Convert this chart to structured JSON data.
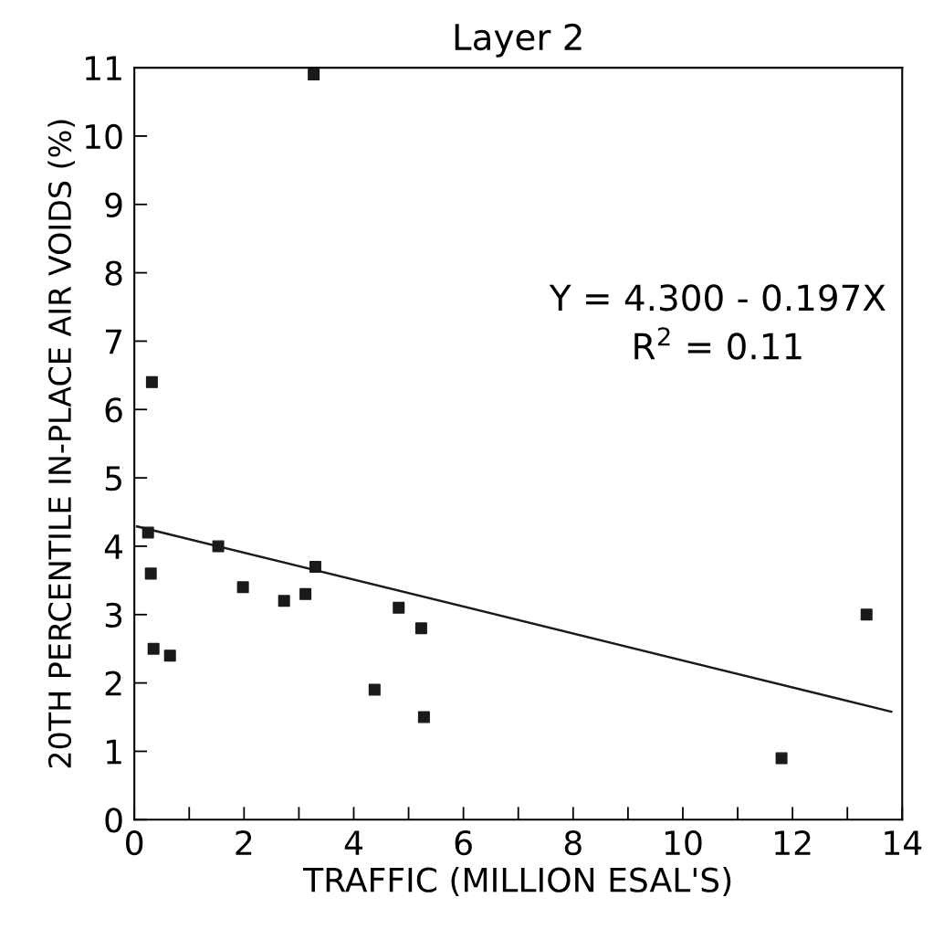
{
  "chart_data": {
    "type": "scatter",
    "title": "Layer 2",
    "xlabel": "TRAFFIC (MILLION ESAL'S)",
    "ylabel": "20TH PERCENTILE IN-PLACE AIR VOIDS (%)",
    "xlim": [
      0,
      14
    ],
    "ylim": [
      0,
      11
    ],
    "xticks": [
      0,
      {
        "value": 1,
        "label": null
      },
      2,
      {
        "value": 3,
        "label": null
      },
      4,
      {
        "value": 5,
        "label": null
      },
      6,
      {
        "value": 7,
        "label": null
      },
      8,
      {
        "value": 9,
        "label": null
      },
      10,
      {
        "value": 11,
        "label": null
      },
      12,
      {
        "value": 13,
        "label": null
      },
      14
    ],
    "yticks": [
      0,
      1,
      2,
      3,
      4,
      5,
      6,
      7,
      8,
      9,
      10,
      11
    ],
    "grid": false,
    "legend": false,
    "series": [
      {
        "marker": "square",
        "color": "#1a1a1a",
        "x": [
          0.32,
          0.25,
          0.3,
          0.35,
          0.65,
          1.53,
          1.98,
          2.73,
          3.27,
          3.12,
          3.3,
          4.38,
          4.82,
          5.23,
          5.28,
          11.8,
          13.35
        ],
        "values": [
          6.4,
          4.2,
          3.6,
          2.5,
          2.4,
          4.0,
          3.4,
          3.2,
          10.9,
          3.3,
          3.7,
          1.9,
          3.1,
          2.8,
          1.5,
          0.9,
          3.0
        ]
      },
      {
        "type": "line",
        "marker": "none",
        "color": "#1a1a1a",
        "x": [
          0.05,
          13.8
        ],
        "values": [
          4.29,
          1.58
        ]
      }
    ],
    "annotations": [
      "Y = 4.300 - 0.197X",
      "R$^{2}$ = 0.11"
    ]
  }
}
